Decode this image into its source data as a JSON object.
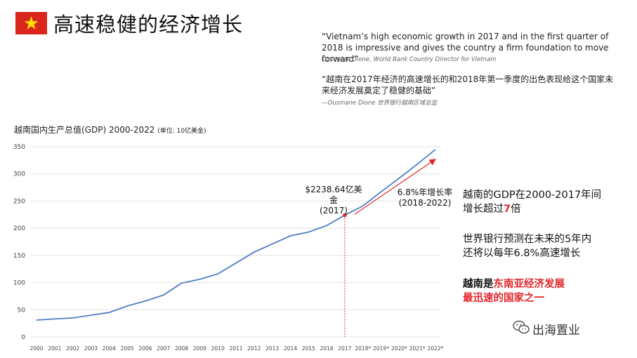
{
  "header": {
    "title": "高速稳健的经济增长",
    "flag_color": "#da251d",
    "star_color": "#ffde00"
  },
  "quotes": {
    "en_text": "“Vietnam’s high economic growth in 2017 and in the first quarter of 2018 is impressive and gives the country a firm foundation to move forward”",
    "en_source": "Ousmane Dione, World Bank Country Director for Vietnam",
    "zh_text": "“越南在2017年经济的高速增长的和2018年第一季度的出色表现给这个国家未来经济发展奠定了稳健的基础”",
    "zh_source": "—Ousmane Dione 世界银行越南区域总监"
  },
  "chart_title": {
    "main": "越南国内生产总值(GDP) 2000-2022",
    "unit": "(单位: 10亿美金)"
  },
  "annotations": {
    "point_value": "$2238.64亿美金",
    "point_year": "(2017)",
    "growth_rate": "6.8%年增长率",
    "growth_period": "(2018-2022)"
  },
  "side": {
    "p1_line1": "越南的GDP在2000-2017年间",
    "p1_line2_prefix": "增长超过",
    "p1_highlight": "7",
    "p1_suffix": "倍",
    "p2_line1": "世界银行预测在未来的5年内",
    "p2_line2": "还将以每年6.8%高速增长",
    "p3_prefix": "越南是",
    "p3_highlight": "东南亚经济发展",
    "p3_line2": "最迅速的国家之一"
  },
  "brand": {
    "name": "出海置业",
    "icon": "wechat-icon"
  },
  "colors": {
    "line": "#4f7ec4",
    "accent": "#e3262a",
    "grid": "#e3e3e3"
  },
  "chart_data": {
    "type": "line",
    "title": "越南国内生产总值(GDP) 2000-2022",
    "ylim": [
      0,
      350
    ],
    "yticks": [
      0,
      50,
      100,
      150,
      200,
      250,
      300,
      350
    ],
    "grid": true,
    "categories": [
      "2000",
      "2001",
      "2002",
      "2003",
      "2004",
      "2005",
      "2006",
      "2007",
      "2008",
      "2009",
      "2010",
      "2011",
      "2012",
      "2013",
      "2014",
      "2015",
      "2016",
      "2017",
      "2018*",
      "2019*",
      "2020*",
      "2021*",
      "2022*"
    ],
    "series": [
      {
        "values": [
          31,
          33,
          35,
          40,
          45,
          57,
          66,
          77,
          99,
          106,
          116,
          136,
          156,
          171,
          186,
          193,
          205,
          224,
          241,
          267,
          292,
          318,
          345
        ]
      }
    ]
  }
}
